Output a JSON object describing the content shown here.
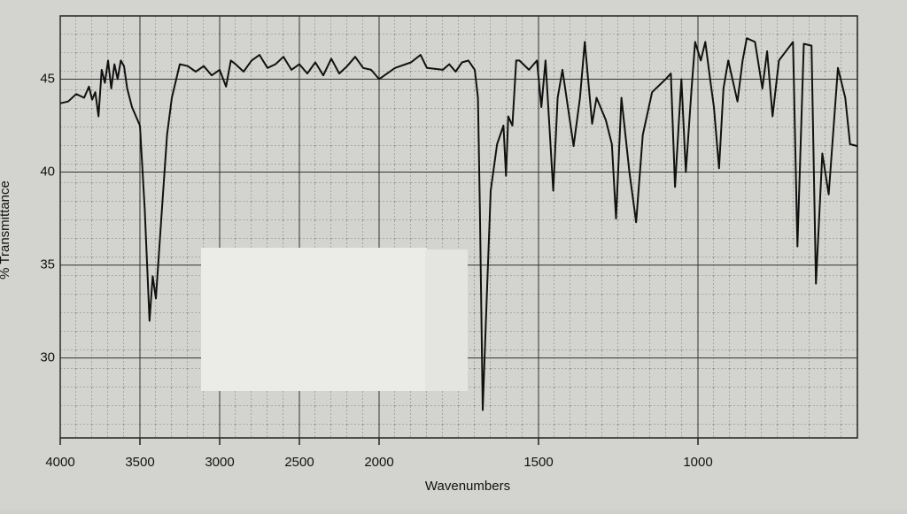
{
  "chart_data": {
    "type": "line",
    "xlabel": "Wavenumbers",
    "ylabel": "% Transmittance",
    "xlim": [
      4000,
      500
    ],
    "ylim": [
      25.7,
      48.4
    ],
    "x_scale": {
      "break": 2000,
      "factor": 2
    },
    "xticks": [
      4000,
      3500,
      3000,
      2500,
      2000,
      1500,
      1000
    ],
    "yticks": [
      30,
      35,
      40,
      45
    ],
    "grid": true,
    "color": "#111111",
    "x": [
      4000,
      3950,
      3900,
      3850,
      3820,
      3800,
      3780,
      3760,
      3740,
      3720,
      3700,
      3680,
      3660,
      3640,
      3620,
      3600,
      3580,
      3550,
      3500,
      3470,
      3440,
      3420,
      3400,
      3370,
      3330,
      3300,
      3250,
      3200,
      3150,
      3100,
      3050,
      3000,
      2960,
      2930,
      2900,
      2850,
      2800,
      2750,
      2700,
      2650,
      2600,
      2550,
      2500,
      2450,
      2400,
      2350,
      2300,
      2250,
      2200,
      2150,
      2100,
      2050,
      2000,
      1950,
      1900,
      1870,
      1850,
      1800,
      1780,
      1760,
      1740,
      1720,
      1700,
      1690,
      1684,
      1675,
      1665,
      1650,
      1630,
      1610,
      1602,
      1595,
      1582,
      1570,
      1560,
      1530,
      1505,
      1491,
      1478,
      1454,
      1440,
      1425,
      1390,
      1370,
      1355,
      1332,
      1318,
      1289,
      1270,
      1257,
      1240,
      1215,
      1194,
      1173,
      1144,
      1101,
      1085,
      1072,
      1052,
      1038,
      1020,
      1009,
      991,
      977,
      962,
      950,
      934,
      920,
      905,
      876,
      860,
      847,
      821,
      798,
      783,
      766,
      746,
      702,
      688,
      668,
      644,
      630,
      610,
      590,
      561,
      538,
      523,
      500
    ],
    "y": [
      43.7,
      43.8,
      44.2,
      44.0,
      44.6,
      43.9,
      44.3,
      43.0,
      45.5,
      44.8,
      46.0,
      44.5,
      45.8,
      45.0,
      46.0,
      45.7,
      44.5,
      43.5,
      42.5,
      38.0,
      32.0,
      34.4,
      33.2,
      37.0,
      42.0,
      44.0,
      45.8,
      45.7,
      45.4,
      45.7,
      45.2,
      45.5,
      44.6,
      46.0,
      45.8,
      45.4,
      46.0,
      46.3,
      45.6,
      45.8,
      46.2,
      45.5,
      45.8,
      45.3,
      45.9,
      45.2,
      46.1,
      45.3,
      45.7,
      46.2,
      45.6,
      45.5,
      45.0,
      45.6,
      45.9,
      46.3,
      45.6,
      45.5,
      45.8,
      45.4,
      45.9,
      46.0,
      45.5,
      44.0,
      38.0,
      27.2,
      32.0,
      39.0,
      41.5,
      42.5,
      39.8,
      43.0,
      42.5,
      46.0,
      46.0,
      45.5,
      46.0,
      43.5,
      46.0,
      39.0,
      44.0,
      45.5,
      41.4,
      44.0,
      47.0,
      42.6,
      44.0,
      42.8,
      41.5,
      37.5,
      44.0,
      40.0,
      37.3,
      42.0,
      44.3,
      45.0,
      45.3,
      39.2,
      45.0,
      40.0,
      44.5,
      47.0,
      46.0,
      47.0,
      45.0,
      43.5,
      40.2,
      44.5,
      46.0,
      43.8,
      46.0,
      47.2,
      47.0,
      44.5,
      46.5,
      43.0,
      46.0,
      47.0,
      36.0,
      46.9,
      46.8,
      34.0,
      41.0,
      38.8,
      45.6,
      44.0,
      41.5,
      41.4
    ]
  }
}
